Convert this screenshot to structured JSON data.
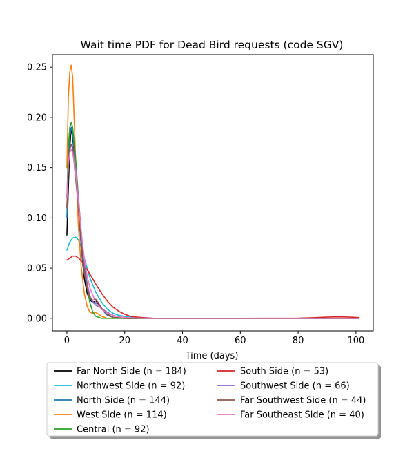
{
  "chart_data": {
    "type": "line",
    "title": "Wait time PDF for Dead Bird  requests (code SGV)",
    "xlabel": "Time (days)",
    "ylabel": "",
    "xlim": [
      -5,
      106
    ],
    "ylim": [
      -0.0125,
      0.2625
    ],
    "xticks": [
      0,
      20,
      40,
      60,
      80,
      100
    ],
    "yticks": [
      0.0,
      0.05,
      0.1,
      0.15,
      0.2,
      0.25
    ],
    "ytick_labels": [
      "0.00",
      "0.05",
      "0.10",
      "0.15",
      "0.20",
      "0.25"
    ],
    "grid": false,
    "legend_position": "below-plot",
    "legend_columns": 2,
    "series": [
      {
        "name": "Far North Side (n = 184)",
        "color": "#000000",
        "x": [
          0,
          0.5,
          1,
          1.5,
          2,
          3,
          4,
          5,
          6,
          7,
          8,
          9,
          10,
          11,
          12,
          14,
          16,
          20,
          30,
          50,
          80,
          101
        ],
        "y": [
          0.083,
          0.13,
          0.17,
          0.19,
          0.18,
          0.15,
          0.11,
          0.07,
          0.04,
          0.025,
          0.018,
          0.016,
          0.017,
          0.014,
          0.01,
          0.004,
          0.001,
          0,
          0,
          0,
          0,
          0
        ]
      },
      {
        "name": "Northwest Side (n = 92)",
        "color": "#17becf",
        "x": [
          0,
          1,
          2,
          3,
          4,
          5,
          6,
          7,
          8,
          10,
          12,
          14,
          16,
          18,
          20,
          25,
          30,
          50,
          80,
          101
        ],
        "y": [
          0.068,
          0.076,
          0.08,
          0.081,
          0.078,
          0.07,
          0.06,
          0.05,
          0.04,
          0.026,
          0.016,
          0.009,
          0.005,
          0.003,
          0.002,
          0.0005,
          0,
          0,
          0,
          0
        ]
      },
      {
        "name": "North Side (n = 144)",
        "color": "#1f77b4",
        "x": [
          0,
          0.5,
          1,
          1.5,
          2,
          3,
          4,
          5,
          6,
          7,
          8,
          9,
          10,
          11,
          12,
          13,
          14,
          16,
          20,
          30,
          50,
          80,
          101
        ],
        "y": [
          0.1,
          0.15,
          0.18,
          0.19,
          0.185,
          0.15,
          0.11,
          0.07,
          0.045,
          0.03,
          0.02,
          0.016,
          0.015,
          0.013,
          0.01,
          0.006,
          0.003,
          0.001,
          0,
          0,
          0,
          0,
          0
        ]
      },
      {
        "name": "West Side (n = 114)",
        "color": "#ff7f0e",
        "x": [
          0,
          0.5,
          1,
          1.5,
          2,
          2.5,
          3,
          4,
          5,
          6,
          7,
          8,
          9,
          10,
          11,
          12,
          14,
          20,
          30,
          50,
          80,
          101
        ],
        "y": [
          0.15,
          0.22,
          0.245,
          0.252,
          0.24,
          0.2,
          0.16,
          0.09,
          0.05,
          0.025,
          0.012,
          0.006,
          0.005,
          0.006,
          0.004,
          0.002,
          0,
          0,
          0,
          0,
          0,
          0
        ]
      },
      {
        "name": "Central (n = 92)",
        "color": "#2ca02c",
        "x": [
          0,
          0.5,
          1,
          1.5,
          2,
          3,
          4,
          5,
          6,
          7,
          8,
          9,
          10,
          11,
          12,
          14,
          16,
          20,
          30,
          50,
          80,
          101
        ],
        "y": [
          0.12,
          0.17,
          0.19,
          0.195,
          0.19,
          0.16,
          0.12,
          0.08,
          0.05,
          0.03,
          0.015,
          0.006,
          0.002,
          0.001,
          0,
          0,
          0,
          0,
          0,
          0,
          0,
          0
        ]
      },
      {
        "name": "South Side (n = 53)",
        "color": "#d62728",
        "x": [
          0,
          1,
          2,
          3,
          4,
          5,
          6,
          8,
          10,
          12,
          14,
          16,
          18,
          20,
          22,
          25,
          30,
          40,
          60,
          80,
          85,
          90,
          94,
          98,
          101
        ],
        "y": [
          0.058,
          0.06,
          0.062,
          0.062,
          0.06,
          0.057,
          0.053,
          0.044,
          0.034,
          0.025,
          0.017,
          0.011,
          0.007,
          0.004,
          0.002,
          0.001,
          0,
          0,
          0,
          0.0002,
          0.0006,
          0.0012,
          0.0015,
          0.0012,
          0.0008
        ]
      },
      {
        "name": "Southwest Side (n = 66)",
        "color": "#9467bd",
        "x": [
          0,
          0.5,
          1,
          1.5,
          2,
          3,
          4,
          5,
          6,
          7,
          8,
          9,
          10,
          12,
          14,
          16,
          18,
          20,
          25,
          30,
          50,
          80,
          101
        ],
        "y": [
          0.11,
          0.15,
          0.168,
          0.172,
          0.17,
          0.15,
          0.12,
          0.085,
          0.055,
          0.035,
          0.022,
          0.016,
          0.013,
          0.01,
          0.006,
          0.003,
          0.0015,
          0.0007,
          0.0002,
          0,
          0,
          0,
          0
        ]
      },
      {
        "name": "Far Southwest Side (n = 44)",
        "color": "#8c564b",
        "x": [
          0,
          0.5,
          1,
          1.5,
          2,
          3,
          4,
          5,
          6,
          7,
          8,
          9,
          10,
          11,
          12,
          14,
          16,
          20,
          30,
          50,
          80,
          101
        ],
        "y": [
          0.11,
          0.15,
          0.17,
          0.173,
          0.17,
          0.14,
          0.11,
          0.075,
          0.048,
          0.03,
          0.02,
          0.018,
          0.019,
          0.015,
          0.01,
          0.004,
          0.001,
          0,
          0,
          0,
          0,
          0
        ]
      },
      {
        "name": "Far Southeast Side (n = 40)",
        "color": "#e377c2",
        "x": [
          0,
          0.5,
          1,
          1.5,
          2,
          3,
          4,
          5,
          6,
          7,
          8,
          10,
          12,
          14,
          16,
          18,
          20,
          25,
          30,
          40,
          60,
          80,
          101
        ],
        "y": [
          0.12,
          0.155,
          0.165,
          0.168,
          0.165,
          0.145,
          0.115,
          0.085,
          0.06,
          0.042,
          0.03,
          0.016,
          0.009,
          0.005,
          0.003,
          0.0015,
          0.0008,
          0.0002,
          0,
          0,
          0,
          0,
          0
        ]
      }
    ]
  }
}
